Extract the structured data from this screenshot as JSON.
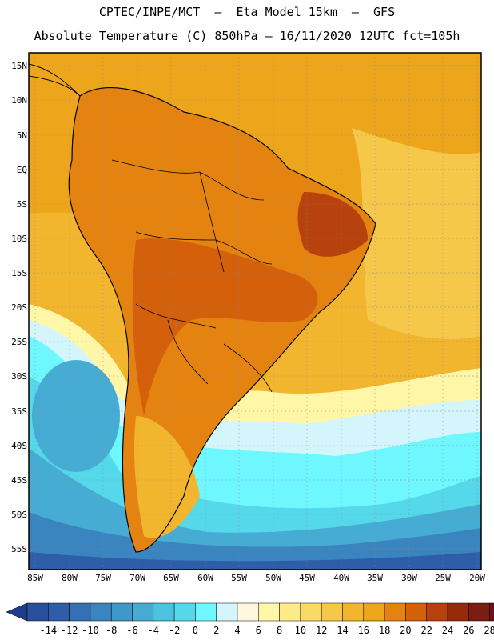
{
  "title_line1": "CPTEC/INPE/MCT  –  Eta Model 15km  –  GFS",
  "title_line2": "Absolute Temperature (C) 850hPa – 16/11/2020 12UTC fct=105h",
  "lat_labels": [
    "15N",
    "10N",
    "5N",
    "EQ",
    "5S",
    "10S",
    "15S",
    "20S",
    "25S",
    "30S",
    "35S",
    "40S",
    "45S",
    "50S",
    "55S"
  ],
  "lon_labels": [
    "85W",
    "80W",
    "75W",
    "70W",
    "65W",
    "60W",
    "55W",
    "50W",
    "45W",
    "40W",
    "35W",
    "30W",
    "25W",
    "20W"
  ],
  "colorbar": {
    "labels": [
      "-14",
      "-12",
      "-10",
      "-8",
      "-6",
      "-4",
      "-2",
      "0",
      "2",
      "4",
      "6",
      "8",
      "10",
      "12",
      "14",
      "16",
      "18",
      "20",
      "22",
      "24",
      "26",
      "28"
    ],
    "colors": [
      "#2a4f9e",
      "#2f5ea8",
      "#3470b3",
      "#3a84bf",
      "#3f98c8",
      "#46acd3",
      "#4bc3de",
      "#55d8ea",
      "#6ff7ff",
      "#d4f5fb",
      "#fff7e0",
      "#fff6a8",
      "#fdeb8a",
      "#f9da66",
      "#f6c84a",
      "#f2b52e",
      "#eda51c",
      "#e58310",
      "#d5600c",
      "#b8420d",
      "#962b0c",
      "#7b1d10",
      "#6e0f24"
    ],
    "end_low": "#1e3c8c",
    "end_high": "#820f28"
  }
}
